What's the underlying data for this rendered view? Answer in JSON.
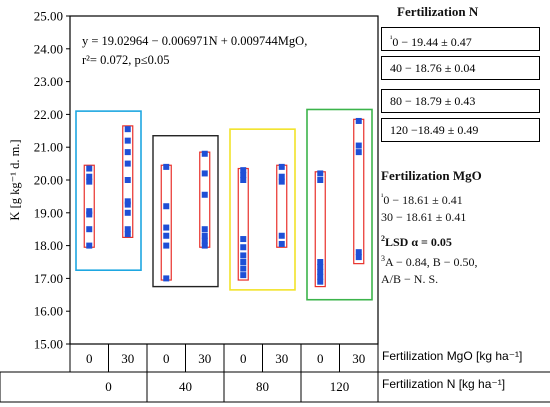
{
  "chart_data": {
    "type": "scatter",
    "ylabel": "K [g kg⁻¹ d. m.]",
    "ylim": [
      15.0,
      25.0
    ],
    "yticks": [
      "15.00",
      "16.00",
      "17.00",
      "18.00",
      "19.00",
      "20.00",
      "21.00",
      "22.00",
      "23.00",
      "24.00",
      "25.00"
    ],
    "equation": "y = 19.02964 − 0.006971N + 0.009744MgO,",
    "fit_stats": "r²= 0.072, p≤0.05",
    "x_axis": {
      "mgo_label": "Fertilization MgO [kg ha⁻¹]",
      "n_label": "Fertilization N [kg ha⁻¹]",
      "mgo_values": [
        "0",
        "30",
        "0",
        "30",
        "0",
        "30",
        "0",
        "30"
      ],
      "n_values": [
        "0",
        "40",
        "80",
        "120"
      ]
    },
    "groups": [
      {
        "n": "0",
        "mgo": "0",
        "color": "#1ea7e1",
        "box_range": [
          17.25,
          22.1
        ],
        "points": [
          {
            "mgo": "0",
            "range": [
              17.95,
              20.45
            ],
            "values": [
              18.0,
              18.5,
              18.95,
              19.05,
              19.95,
              20.1,
              20.35
            ]
          },
          {
            "mgo": "30",
            "range": [
              18.25,
              21.65
            ],
            "values": [
              18.35,
              18.5,
              19.0,
              19.25,
              19.35,
              20.0,
              20.5,
              20.85,
              21.2,
              21.55
            ]
          }
        ]
      },
      {
        "n": "40",
        "color": "#222222",
        "box_range": [
          16.75,
          21.35
        ],
        "points": [
          {
            "mgo": "0",
            "range": [
              16.95,
              20.45
            ],
            "values": [
              17.0,
              18.0,
              18.3,
              18.55,
              19.2,
              20.4
            ]
          },
          {
            "mgo": "30",
            "range": [
              17.95,
              20.85
            ],
            "values": [
              18.0,
              18.15,
              18.3,
              18.5,
              19.55,
              20.2,
              20.8
            ]
          }
        ]
      },
      {
        "n": "80",
        "color": "#f2e32a",
        "box_range": [
          16.65,
          21.55
        ],
        "points": [
          {
            "mgo": "0",
            "range": [
              16.95,
              20.35
            ],
            "values": [
              17.1,
              17.3,
              17.5,
              17.7,
              17.95,
              18.2,
              20.0,
              20.15,
              20.3
            ]
          },
          {
            "mgo": "30",
            "range": [
              17.95,
              20.45
            ],
            "values": [
              18.05,
              18.3,
              19.95,
              20.1,
              20.4
            ]
          }
        ]
      },
      {
        "n": "120",
        "color": "#3cb44b",
        "box_range": [
          16.35,
          22.15
        ],
        "points": [
          {
            "mgo": "0",
            "range": [
              16.75,
              20.25
            ],
            "values": [
              16.9,
              17.05,
              17.2,
              17.35,
              17.5,
              20.0,
              20.2
            ]
          },
          {
            "mgo": "30",
            "range": [
              17.45,
              21.85
            ],
            "values": [
              17.65,
              17.8,
              20.85,
              21.05,
              21.8
            ]
          }
        ]
      }
    ]
  },
  "legend": {
    "n_title": "Fertilization N",
    "n_entries": [
      {
        "label": "¹",
        "text": "0 − 19.44 ± 0.47",
        "color": "#1ea7e1"
      },
      {
        "label": "",
        "text": "40 − 18.76 ± 0.04",
        "color": "#222222"
      },
      {
        "label": "",
        "text": "80 − 18.79 ± 0.43",
        "color": "#f2e32a"
      },
      {
        "label": "",
        "text": "120 −18.49 ± 0.49",
        "color": "#3cb44b"
      }
    ],
    "mgo_title": "Fertilization MgO",
    "mgo_lines": [
      "¹",
      "0 − 18.61 ± 0.41",
      "30 − 18.61 ± 0.41"
    ],
    "lsd_sup": "2",
    "lsd_text": "LSD α = 0.05",
    "lsd_sup3": "3",
    "lsd_line1": "A − 0.84, B − 0.50,",
    "lsd_line2": "A/B − N. S."
  }
}
